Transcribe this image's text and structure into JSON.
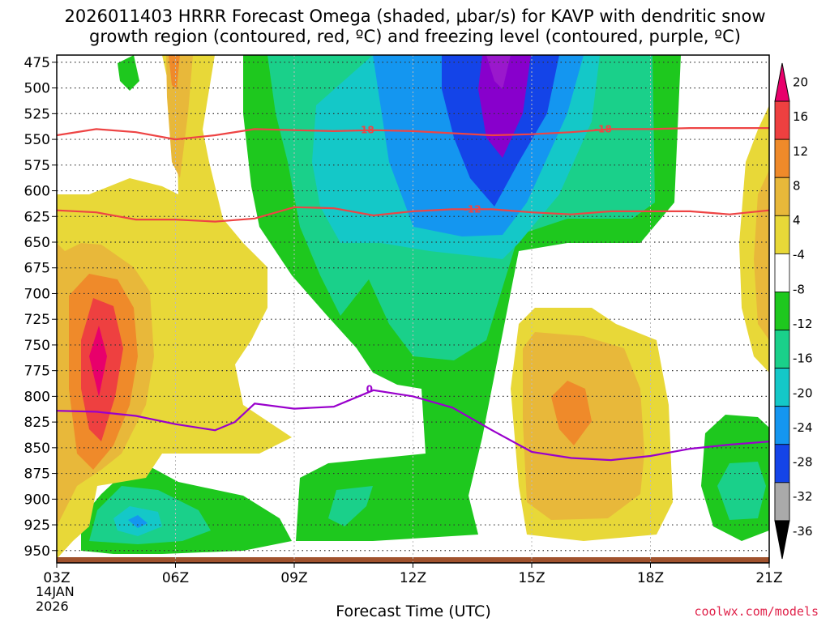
{
  "title_lines": [
    "2026011403 HRRR Forecast Omega (shaded, μbar/s) for KAVP with dendritic snow",
    "growth region (contoured, red, ºC) and freezing level (contoured, purple, ºC)"
  ],
  "x_axis_title": "Forecast Time (UTC)",
  "credit": "coolwx.com/models",
  "date_lines": [
    "14JAN",
    "2026"
  ],
  "chart_data": {
    "type": "heatmap",
    "xlabel": "Forecast Time (UTC)",
    "ylabel": "",
    "x_ticks": [
      "03Z",
      "06Z",
      "09Z",
      "12Z",
      "15Z",
      "18Z",
      "21Z"
    ],
    "x_range": [
      3,
      21
    ],
    "y_ticks": [
      475,
      500,
      525,
      550,
      575,
      600,
      625,
      650,
      675,
      700,
      725,
      750,
      775,
      800,
      825,
      850,
      875,
      900,
      925,
      950
    ],
    "y_range": [
      962,
      468
    ],
    "grid": true,
    "colorbar": {
      "levels": [
        20,
        16,
        12,
        8,
        4,
        -4,
        -8,
        -12,
        -16,
        -20,
        -24,
        -28,
        -32,
        -36
      ],
      "colors": [
        "#e8006b",
        "#ee4040",
        "#ef8a2a",
        "#e8b83a",
        "#e8d838",
        "#ffffff",
        "#1ec81e",
        "#1ad08a",
        "#14c8c8",
        "#1496f0",
        "#1444e8",
        "#8800cc",
        "#aaaaaa",
        "#000000"
      ]
    },
    "contours": [
      {
        "label": "-18",
        "color": "#ee4444",
        "points": [
          [
            3,
            546
          ],
          [
            4,
            540
          ],
          [
            5,
            543
          ],
          [
            6,
            550
          ],
          [
            7,
            546
          ],
          [
            8,
            540
          ],
          [
            9,
            541
          ],
          [
            10,
            542
          ],
          [
            11,
            541
          ],
          [
            12,
            542
          ],
          [
            13,
            544
          ],
          [
            14,
            546
          ],
          [
            15,
            545
          ],
          [
            16,
            543
          ],
          [
            17,
            540
          ],
          [
            18,
            540
          ],
          [
            19,
            539
          ],
          [
            20,
            539
          ],
          [
            21,
            539
          ]
        ],
        "label_at": [
          [
            10.8,
            541
          ],
          [
            16.8,
            540
          ]
        ]
      },
      {
        "label": "-12",
        "color": "#ee4444",
        "points": [
          [
            3,
            619
          ],
          [
            4,
            621
          ],
          [
            5,
            628
          ],
          [
            6,
            628
          ],
          [
            7,
            630
          ],
          [
            8,
            627
          ],
          [
            9,
            616
          ],
          [
            10,
            617
          ],
          [
            11,
            624
          ],
          [
            12,
            620
          ],
          [
            13,
            618
          ],
          [
            14,
            618
          ],
          [
            15,
            621
          ],
          [
            16,
            623
          ],
          [
            17,
            620
          ],
          [
            18,
            620
          ],
          [
            19,
            620
          ],
          [
            20,
            623
          ],
          [
            21,
            619
          ]
        ],
        "label_at": [
          [
            13.5,
            618
          ]
        ]
      },
      {
        "label": "0",
        "color": "#9900cc",
        "points": [
          [
            3,
            814
          ],
          [
            4,
            815
          ],
          [
            5,
            819
          ],
          [
            6,
            827
          ],
          [
            7,
            833
          ],
          [
            7.5,
            825
          ],
          [
            8,
            807
          ],
          [
            9,
            812
          ],
          [
            10,
            810
          ],
          [
            11,
            794
          ],
          [
            12,
            800
          ],
          [
            13,
            811
          ],
          [
            14,
            833
          ],
          [
            15,
            854
          ],
          [
            16,
            860
          ],
          [
            17,
            862
          ],
          [
            18,
            858
          ],
          [
            19,
            851
          ],
          [
            20,
            847
          ],
          [
            21,
            844
          ]
        ],
        "label_at": [
          [
            10.9,
            793
          ]
        ]
      }
    ]
  }
}
